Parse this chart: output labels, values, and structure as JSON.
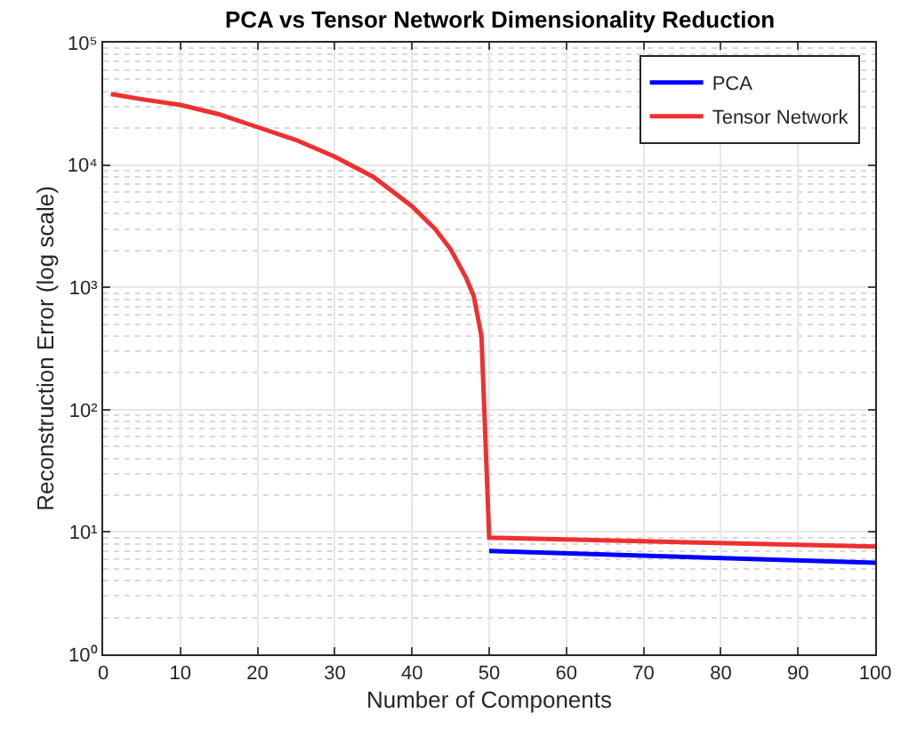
{
  "chart_data": {
    "type": "line",
    "title": "PCA vs Tensor Network Dimensionality Reduction",
    "xlabel": "Number of Components",
    "ylabel": "Reconstruction Error (log scale)",
    "series": [
      {
        "name": "PCA",
        "color": "#0000ff",
        "x": [
          50,
          100
        ],
        "values": [
          7,
          5.6
        ]
      },
      {
        "name": "Tensor Network",
        "color": "#ee3030",
        "x": [
          1,
          5,
          10,
          15,
          20,
          25,
          30,
          35,
          40,
          43,
          45,
          47,
          48,
          49,
          50,
          100
        ],
        "values": [
          38000,
          34500,
          31000,
          26000,
          20400,
          16000,
          11700,
          8000,
          4600,
          3000,
          2050,
          1200,
          850,
          400,
          9,
          7.6
        ]
      }
    ],
    "xlim": [
      0,
      100
    ],
    "xticks": [
      0,
      10,
      20,
      30,
      40,
      50,
      60,
      70,
      80,
      90,
      100
    ],
    "ylim": [
      1,
      100000
    ],
    "yticks": [
      {
        "value": 1,
        "label": "10⁰"
      },
      {
        "value": 10,
        "label": "10¹"
      },
      {
        "value": 100,
        "label": "10²"
      },
      {
        "value": 1000,
        "label": "10³"
      },
      {
        "value": 10000,
        "label": "10⁴"
      },
      {
        "value": 100000,
        "label": "10⁵"
      }
    ],
    "log": "y",
    "grid": true,
    "legend": "top right",
    "marker": "none",
    "line_style": "solid"
  }
}
